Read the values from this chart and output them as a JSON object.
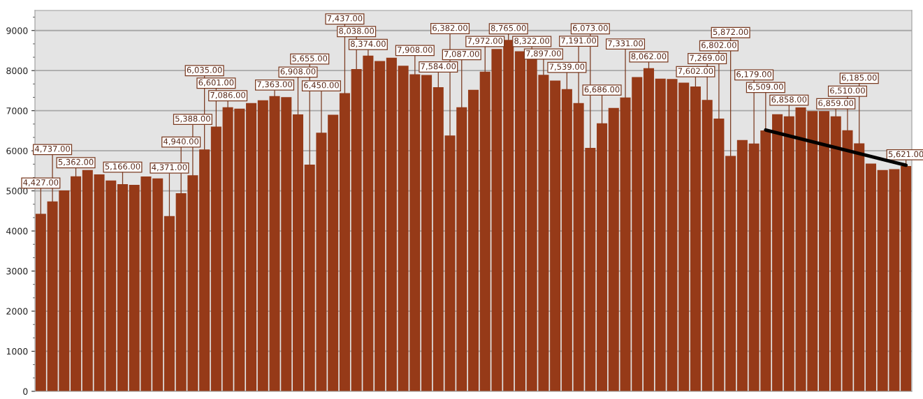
{
  "chart_data": {
    "type": "bar",
    "categories": [
      null,
      null,
      null,
      null,
      null,
      null,
      null,
      null,
      null,
      null,
      null,
      null,
      null,
      null,
      null,
      null,
      null,
      null,
      null,
      null,
      null,
      null,
      null,
      null,
      null,
      null,
      null,
      null,
      null,
      null,
      null,
      null,
      null,
      null,
      null,
      null,
      null,
      null,
      null,
      null,
      null,
      null,
      null,
      null,
      null,
      null,
      null,
      null,
      null,
      null,
      null,
      null,
      null,
      null,
      null,
      null,
      null,
      null,
      null,
      null,
      null,
      null,
      null,
      null,
      null,
      null,
      null,
      null,
      null,
      null,
      null,
      null,
      null,
      null,
      null
    ],
    "series": [
      {
        "color": "#963a18",
        "values": [
          4427,
          4737,
          5010,
          5362,
          5520,
          5410,
          5260,
          5166,
          5150,
          5360,
          5310,
          4371,
          4940,
          5388,
          6035,
          6601,
          7086,
          7050,
          7190,
          7260,
          7363,
          7340,
          6908,
          5655,
          6450,
          6900,
          7437,
          8038,
          8374,
          8240,
          8320,
          8120,
          7908,
          7890,
          7584,
          6382,
          7087,
          7520,
          7972,
          8540,
          8765,
          8480,
          8322,
          7897,
          7750,
          7539,
          7191,
          6073,
          6686,
          7070,
          7331,
          7840,
          8062,
          7800,
          7790,
          7700,
          7602,
          7269,
          6802,
          5872,
          6270,
          6179,
          6509,
          6910,
          6858,
          7080,
          6990,
          6990,
          6859,
          6510,
          6185,
          5680,
          5520,
          5540,
          5621
        ],
        "value_labels": [
          "4,427.00",
          "4,737.00",
          null,
          "5,362.00",
          null,
          null,
          null,
          "5,166.00",
          null,
          null,
          null,
          "4,371.00",
          "4,940.00",
          "5,388.00",
          "6,035.00",
          "6,601.00",
          "7,086.00",
          null,
          null,
          null,
          "7,363.00",
          null,
          "6,908.00",
          "5,655.00",
          "6,450.00",
          null,
          "7,437.00",
          "8,038.00",
          "8,374.00",
          null,
          null,
          null,
          "7,908.00",
          null,
          "7,584.00",
          "6,382.00",
          "7,087.00",
          null,
          "7,972.00",
          null,
          "8,765.00",
          null,
          "8,322.00",
          "7,897.00",
          null,
          "7,539.00",
          "7,191.00",
          "6,073.00",
          "6,686.00",
          null,
          "7,331.00",
          null,
          "8,062.00",
          null,
          null,
          null,
          "7,602.00",
          "7,269.00",
          "6,802.00",
          "5,872.00",
          null,
          "6,179.00",
          "6,509.00",
          null,
          "6,858.00",
          null,
          null,
          null,
          "6,859.00",
          "6,510.00",
          "6,185.00",
          null,
          null,
          null,
          "5,621.00"
        ]
      },
      {
        "type": "line",
        "color": "#000000",
        "values": [
          null,
          null,
          null,
          null,
          null,
          null,
          null,
          null,
          null,
          null,
          null,
          null,
          null,
          null,
          null,
          null,
          null,
          null,
          null,
          null,
          null,
          null,
          null,
          null,
          null,
          null,
          null,
          null,
          null,
          null,
          null,
          null,
          null,
          null,
          null,
          null,
          null,
          null,
          null,
          null,
          null,
          null,
          null,
          null,
          null,
          null,
          null,
          null,
          null,
          null,
          null,
          null,
          null,
          null,
          null,
          null,
          null,
          null,
          null,
          null,
          null,
          null,
          6520,
          null,
          null,
          null,
          null,
          null,
          null,
          null,
          null,
          null,
          null,
          null,
          5640
        ]
      }
    ],
    "ylim": [
      0,
      9500
    ],
    "yticks": [
      0,
      1000,
      2000,
      3000,
      4000,
      5000,
      6000,
      7000,
      8000,
      9000
    ],
    "grid": "y",
    "legend": false
  }
}
